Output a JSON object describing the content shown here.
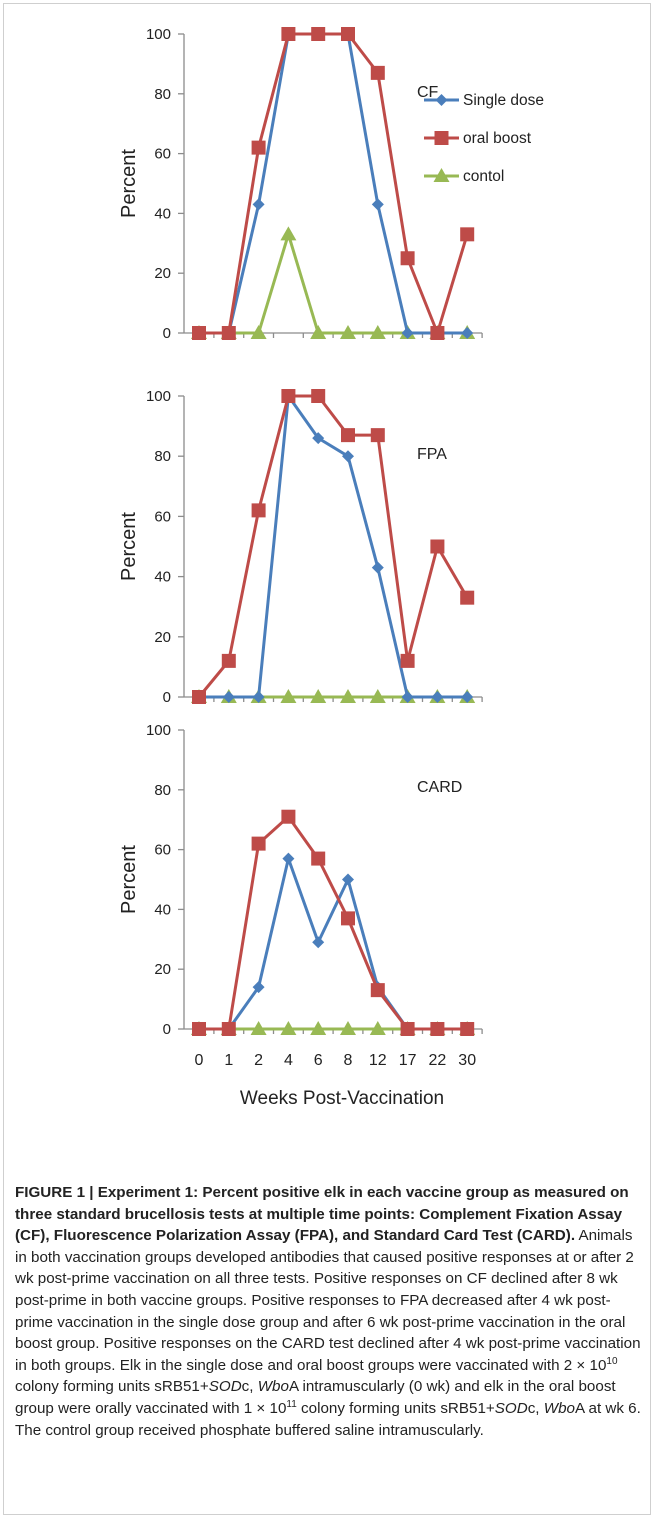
{
  "chart_data": [
    {
      "type": "line",
      "title": "CF",
      "ylabel": "Percent",
      "xlabel": "",
      "categories": [
        "0",
        "1",
        "2",
        "4",
        "6",
        "8",
        "12",
        "17",
        "22",
        "30"
      ],
      "ylim": [
        0,
        100
      ],
      "yticks": [
        0,
        20,
        40,
        60,
        80,
        100
      ],
      "legend_position": "right",
      "show_legend": true,
      "show_x_ticks": false,
      "series": [
        {
          "name": "Single dose",
          "color": "#4a7ebb",
          "marker": "diamond",
          "values": [
            0,
            0,
            43,
            100,
            100,
            100,
            43,
            0,
            0,
            0
          ]
        },
        {
          "name": "oral boost",
          "color": "#be4b48",
          "marker": "square",
          "values": [
            0,
            0,
            62,
            100,
            100,
            100,
            87,
            25,
            0,
            33
          ]
        },
        {
          "name": "contol",
          "color": "#98b954",
          "marker": "triangle",
          "values": [
            0,
            0,
            0,
            33,
            0,
            0,
            0,
            0,
            0,
            0
          ]
        }
      ]
    },
    {
      "type": "line",
      "title": "FPA",
      "ylabel": "Percent",
      "xlabel": "",
      "categories": [
        "0",
        "1",
        "2",
        "4",
        "6",
        "8",
        "12",
        "17",
        "22",
        "30"
      ],
      "ylim": [
        0,
        100
      ],
      "yticks": [
        0,
        20,
        40,
        60,
        80,
        100
      ],
      "show_legend": false,
      "show_x_ticks": false,
      "series": [
        {
          "color": "#4a7ebb",
          "marker": "diamond",
          "values": [
            0,
            0,
            0,
            100,
            86,
            80,
            43,
            0,
            0,
            0
          ]
        },
        {
          "color": "#be4b48",
          "marker": "square",
          "values": [
            0,
            12,
            62,
            100,
            100,
            87,
            87,
            12,
            50,
            33
          ]
        },
        {
          "color": "#98b954",
          "marker": "triangle",
          "values": [
            0,
            0,
            0,
            0,
            0,
            0,
            0,
            0,
            0,
            0
          ]
        }
      ]
    },
    {
      "type": "line",
      "title": "CARD",
      "ylabel": "Percent",
      "xlabel": "Weeks Post-Vaccination",
      "categories": [
        "0",
        "1",
        "2",
        "4",
        "6",
        "8",
        "12",
        "17",
        "22",
        "30"
      ],
      "ylim": [
        0,
        100
      ],
      "yticks": [
        0,
        20,
        40,
        60,
        80,
        100
      ],
      "show_legend": false,
      "show_x_ticks": true,
      "series": [
        {
          "color": "#4a7ebb",
          "marker": "diamond",
          "values": [
            0,
            0,
            14,
            57,
            29,
            50,
            14,
            0,
            0,
            0
          ]
        },
        {
          "color": "#be4b48",
          "marker": "square",
          "values": [
            0,
            0,
            62,
            71,
            57,
            37,
            13,
            0,
            0,
            0
          ]
        },
        {
          "color": "#98b954",
          "marker": "triangle",
          "values": [
            0,
            0,
            0,
            0,
            0,
            0,
            0,
            0,
            0,
            0
          ]
        }
      ]
    }
  ],
  "caption": {
    "title": "FIGURE 1 | Experiment 1: Percent positive elk in each vaccine group as measured on three standard brucellosis tests at multiple time points: Complement Fixation Assay (CF), Fluorescence Polarization Assay (FPA), and Standard Card Test (CARD).",
    "body_1": " Animals in both vaccination groups developed antibodies that caused positive responses at or after 2 wk post-prime vaccination on all three tests. Positive responses on CF declined after 8 wk post-prime in both vaccine groups. Positive responses to FPA decreased after 4 wk post-prime vaccination in the single dose group and after 6 wk post-prime vaccination in the oral boost group. Positive responses on the CARD test declined after 4 wk post-prime vaccination in both groups. Elk in the single dose and oral boost groups were vaccinated with 2 × 10",
    "exp_1": "10",
    "body_2": " colony forming units sRB51+",
    "ital_1": "SOD",
    "body_3": "c, ",
    "ital_2": "Wbo",
    "body_4": "A intramuscularly (0 wk) and elk in the oral boost group were orally vaccinated with 1 × 10",
    "exp_2": "11",
    "body_5": " colony forming units sRB51+",
    "ital_3": "SOD",
    "body_6": "c, ",
    "ital_4": "Wbo",
    "body_7": "A at wk 6. The control group received phosphate buffered saline intramuscularly."
  }
}
